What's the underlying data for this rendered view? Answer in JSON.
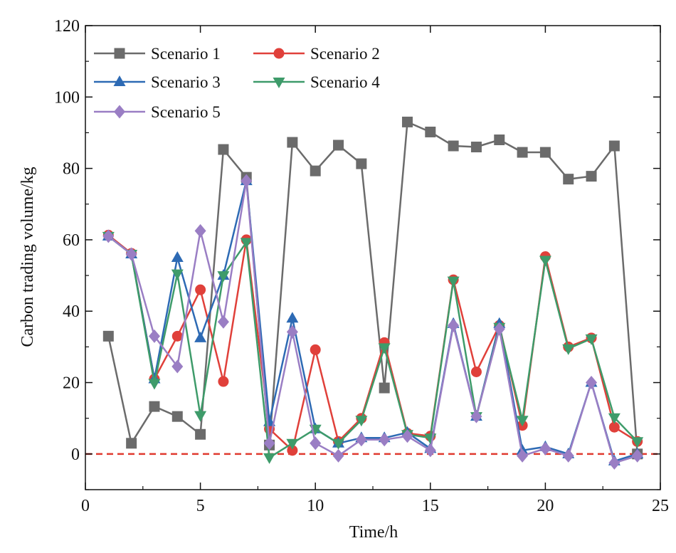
{
  "chart_data": {
    "type": "line",
    "xlabel": "Time/h",
    "ylabel": "Carbon trading volume/kg",
    "xlim": [
      0,
      25
    ],
    "ylim": [
      -10,
      120
    ],
    "x_ticks": [
      0,
      5,
      10,
      15,
      20,
      25
    ],
    "y_ticks": [
      0,
      20,
      40,
      60,
      80,
      100,
      120
    ],
    "x_tick_labels": [
      "0",
      "5",
      "10",
      "15",
      "20",
      "25"
    ],
    "y_tick_labels": [
      "0",
      "20",
      "40",
      "60",
      "80",
      "100",
      "120"
    ],
    "grid": false,
    "legend_position": "top-left",
    "reference_line": {
      "y": 0,
      "color": "#e03a2f",
      "style": "dashed"
    },
    "x": [
      1,
      2,
      3,
      4,
      5,
      6,
      7,
      8,
      9,
      10,
      11,
      12,
      13,
      14,
      15,
      16,
      17,
      18,
      19,
      20,
      21,
      22,
      23,
      24
    ],
    "series": [
      {
        "name": "Scenario 1",
        "color": "#6b6b6b",
        "marker": "square",
        "values": [
          33,
          3,
          13.3,
          10.5,
          5.5,
          85.3,
          77.5,
          2.5,
          87.3,
          79.3,
          86.5,
          81.3,
          18.5,
          93,
          90.2,
          86.3,
          86,
          88,
          84.5,
          84.5,
          77,
          77.8,
          86.3,
          0
        ]
      },
      {
        "name": "Scenario 2",
        "color": "#e0403a",
        "marker": "circle",
        "values": [
          61.3,
          56.2,
          21,
          33,
          46,
          20.3,
          60,
          7,
          1,
          29.2,
          3.5,
          10,
          31.2,
          5.8,
          5,
          48.8,
          23,
          36,
          8,
          55.3,
          30,
          32.5,
          7.5,
          3.5
        ]
      },
      {
        "name": "Scenario 3",
        "color": "#2d6ab4",
        "marker": "triangle-up",
        "values": [
          61,
          56,
          21,
          55,
          32.5,
          50,
          76.5,
          9,
          38,
          7,
          3,
          4.5,
          4.5,
          6,
          1.5,
          36.5,
          10.5,
          36.5,
          1,
          2,
          0,
          20,
          -2,
          0
        ]
      },
      {
        "name": "Scenario 4",
        "color": "#3e9b6a",
        "marker": "triangle-down",
        "values": [
          61,
          56,
          19.8,
          50.5,
          10.8,
          50,
          59.3,
          -1,
          3,
          7,
          3,
          9.5,
          29.8,
          5.5,
          4.5,
          48.5,
          10.5,
          35.5,
          9.5,
          54.3,
          29.5,
          32.3,
          10.2,
          3.5
        ]
      },
      {
        "name": "Scenario 5",
        "color": "#9a7ec4",
        "marker": "diamond",
        "values": [
          61,
          56,
          33,
          24.5,
          62.5,
          37,
          76.5,
          3,
          34.2,
          3,
          -0.5,
          4,
          4,
          5,
          1,
          36,
          10.5,
          35,
          -0.5,
          1.5,
          -0.5,
          20,
          -2.5,
          -0.5
        ]
      }
    ]
  }
}
